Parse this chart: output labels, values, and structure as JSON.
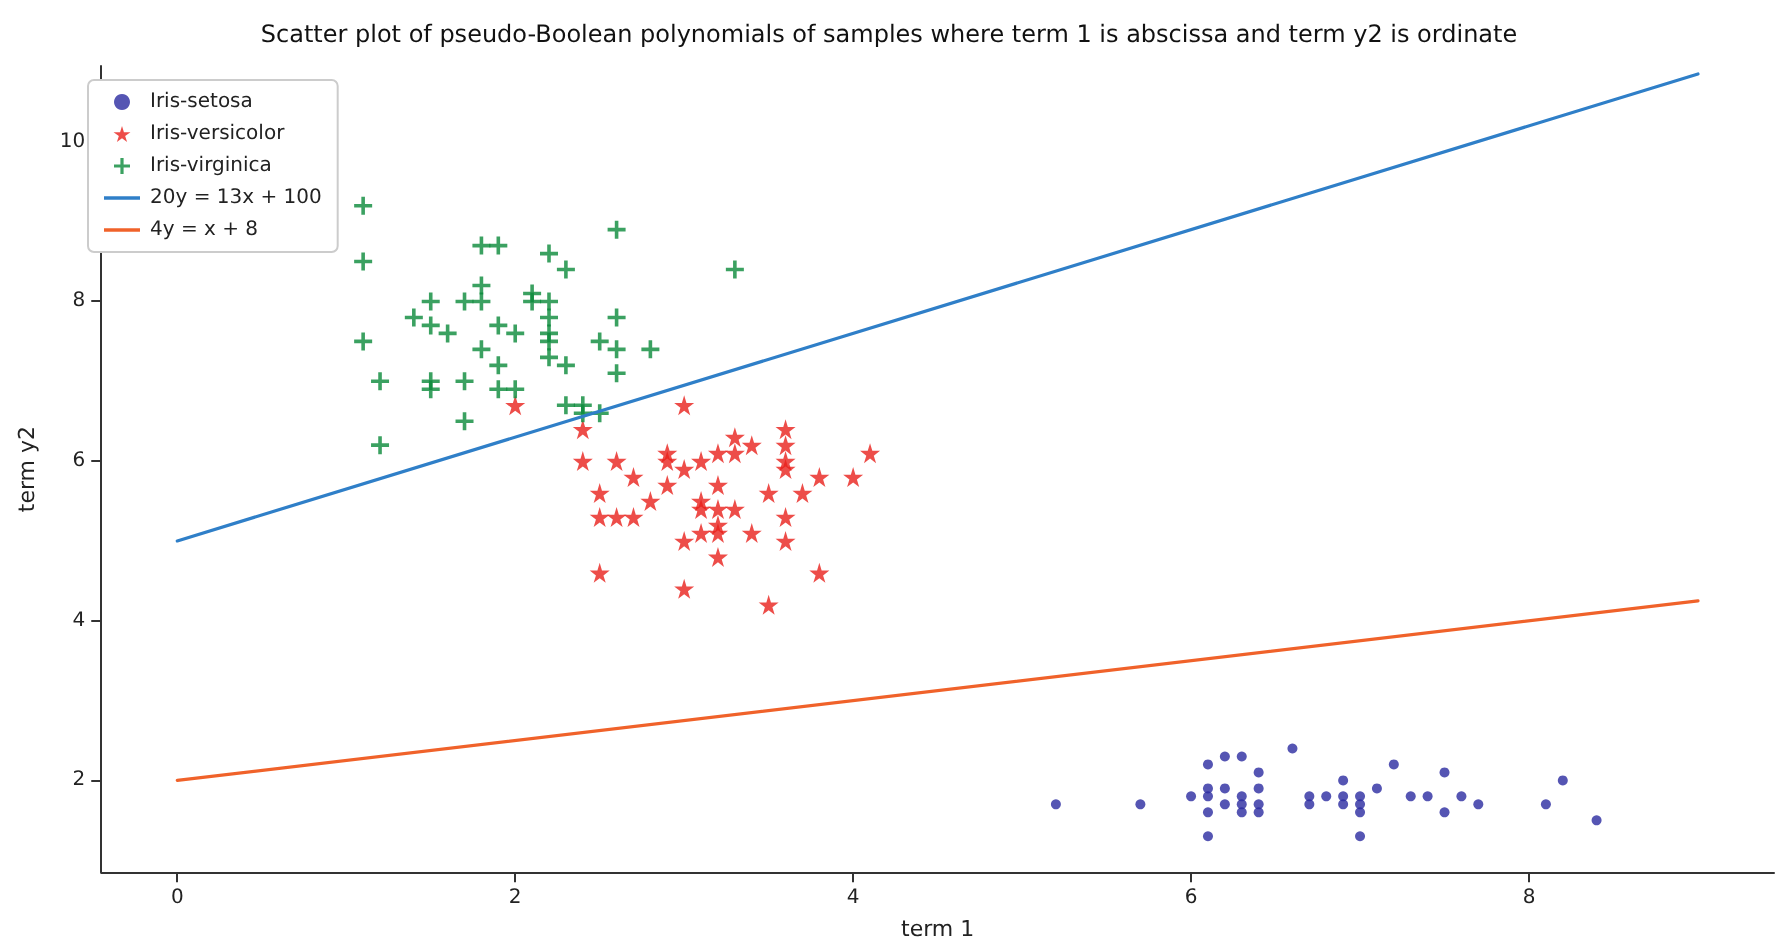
{
  "chart_data": {
    "type": "scatter",
    "title": "Scatter plot of pseudo-Boolean polynomials of samples where term 1 is abscissa and term y2 is ordinate",
    "xlabel": "term 1",
    "ylabel": "term y2",
    "xlim": [
      -0.45,
      9.45
    ],
    "ylim": [
      0.85,
      10.95
    ],
    "xticks": [
      0,
      2,
      4,
      6,
      8
    ],
    "yticks": [
      2,
      4,
      6,
      8,
      10
    ],
    "grid": false,
    "legend": "top left",
    "series": [
      {
        "name": "Iris-setosa",
        "marker": "circle",
        "color": "#2a2aa0",
        "x": [
          5.2,
          5.7,
          6.0,
          6.1,
          6.1,
          6.1,
          6.1,
          6.1,
          6.2,
          6.2,
          6.2,
          6.3,
          6.3,
          6.3,
          6.3,
          6.4,
          6.4,
          6.4,
          6.4,
          6.6,
          6.7,
          6.7,
          6.8,
          6.9,
          6.9,
          6.9,
          7.0,
          7.0,
          7.0,
          7.0,
          7.1,
          7.2,
          7.3,
          7.4,
          7.5,
          7.5,
          7.6,
          7.7,
          8.1,
          8.2,
          8.4
        ],
        "values": [
          1.7,
          1.7,
          1.8,
          2.2,
          1.9,
          1.8,
          1.6,
          1.3,
          2.3,
          1.9,
          1.7,
          2.3,
          1.8,
          1.7,
          1.6,
          2.1,
          1.9,
          1.7,
          1.6,
          2.4,
          1.8,
          1.7,
          1.8,
          2.0,
          1.8,
          1.7,
          1.8,
          1.7,
          1.6,
          1.3,
          1.9,
          2.2,
          1.8,
          1.8,
          2.1,
          1.6,
          1.8,
          1.7,
          1.7,
          2.0,
          1.5
        ]
      },
      {
        "name": "Iris-versicolor",
        "marker": "star",
        "color": "#e8201c",
        "x": [
          2.0,
          2.4,
          2.4,
          2.5,
          2.5,
          2.5,
          2.6,
          2.6,
          2.7,
          2.7,
          2.8,
          2.9,
          2.9,
          2.9,
          3.0,
          3.0,
          3.0,
          3.0,
          3.1,
          3.1,
          3.1,
          3.1,
          3.2,
          3.2,
          3.2,
          3.2,
          3.2,
          3.2,
          3.3,
          3.3,
          3.3,
          3.4,
          3.4,
          3.5,
          3.5,
          3.6,
          3.6,
          3.6,
          3.6,
          3.6,
          3.6,
          3.7,
          3.8,
          3.8,
          4.0,
          4.1
        ],
        "values": [
          6.7,
          6.4,
          6.0,
          5.6,
          5.3,
          4.6,
          6.0,
          5.3,
          5.8,
          5.3,
          5.5,
          6.1,
          6.0,
          5.7,
          6.7,
          5.9,
          5.0,
          4.4,
          6.0,
          5.5,
          5.4,
          5.1,
          6.1,
          5.7,
          5.4,
          5.2,
          5.1,
          4.8,
          6.3,
          6.1,
          5.4,
          6.2,
          5.1,
          5.6,
          4.2,
          6.4,
          6.2,
          6.0,
          5.9,
          5.3,
          5.0,
          5.6,
          5.8,
          4.6,
          5.8,
          6.1
        ]
      },
      {
        "name": "Iris-virginica",
        "marker": "cross",
        "color": "#0a8a3a",
        "x": [
          1.1,
          1.1,
          1.1,
          1.2,
          1.2,
          1.4,
          1.5,
          1.5,
          1.5,
          1.5,
          1.6,
          1.7,
          1.7,
          1.7,
          1.8,
          1.8,
          1.8,
          1.8,
          1.9,
          1.9,
          1.9,
          1.9,
          2.0,
          2.0,
          2.1,
          2.1,
          2.2,
          2.2,
          2.2,
          2.2,
          2.2,
          2.2,
          2.3,
          2.3,
          2.3,
          2.4,
          2.4,
          2.5,
          2.5,
          2.6,
          2.6,
          2.6,
          2.6,
          2.8,
          3.3
        ],
        "values": [
          9.2,
          8.5,
          7.5,
          7.0,
          6.2,
          7.8,
          8.0,
          7.7,
          7.0,
          6.9,
          7.6,
          8.0,
          7.0,
          6.5,
          8.7,
          8.2,
          8.0,
          7.4,
          8.7,
          7.7,
          7.2,
          6.9,
          7.6,
          6.9,
          8.1,
          8.0,
          8.6,
          8.0,
          7.8,
          7.6,
          7.5,
          7.3,
          8.4,
          7.2,
          6.7,
          6.7,
          6.6,
          7.5,
          6.6,
          8.9,
          7.8,
          7.4,
          7.1,
          7.4,
          8.4
        ]
      },
      {
        "name": "20y = 13x + 100",
        "type": "line",
        "marker": "none",
        "color": "#2f7fc8",
        "x": [
          0,
          9
        ],
        "values": [
          5,
          10.85
        ]
      },
      {
        "name": "4y = x + 8",
        "type": "line",
        "marker": "none",
        "color": "#f0622a",
        "x": [
          0,
          9
        ],
        "values": [
          2,
          4.25
        ]
      }
    ]
  }
}
